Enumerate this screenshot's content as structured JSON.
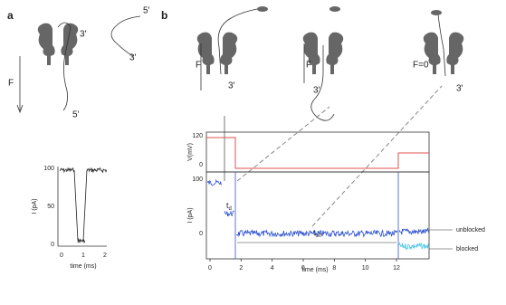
{
  "panel_a": {
    "label": "a",
    "force": "F",
    "strand_ends": [
      "3'",
      "5'"
    ],
    "free_strand_ends": [
      "5'",
      "3'"
    ],
    "trace": {
      "y_axis_label": "I (pA)",
      "y_ticks": [
        "100",
        "50",
        "0"
      ],
      "x_axis_label": "time (ms)",
      "x_ticks": [
        "0",
        "1",
        "2"
      ]
    }
  },
  "panel_b": {
    "label": "b",
    "force_labels": [
      "F",
      "F",
      "F=0"
    ],
    "strand_ends": [
      "3'",
      "3'",
      "3'"
    ],
    "voltage": {
      "y_axis_label": "V(mV)",
      "y_ticks": [
        "120",
        "0"
      ]
    },
    "current": {
      "y_axis_label": "I (pA)",
      "y_ticks": [
        "100",
        "0"
      ],
      "x_axis_label": "time (ms)",
      "x_ticks": [
        "0",
        "2",
        "4",
        "6",
        "8",
        "10",
        "12"
      ],
      "annotations": {
        "dwell": "t",
        "dwell_sub": "d",
        "off": "t",
        "off_sub": "off"
      },
      "levels": [
        "unblocked",
        "blocked"
      ]
    }
  }
}
